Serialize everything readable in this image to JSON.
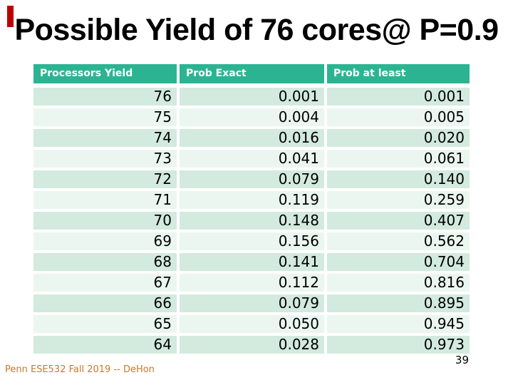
{
  "slide": {
    "title": "Possible Yield of 76 cores@ P=0.9",
    "footer": "Penn ESE532 Fall 2019 -- DeHon",
    "page_number": "39"
  },
  "table": {
    "columns": [
      "Processors Yield",
      "Prob Exact",
      "Prob at least"
    ],
    "rows": [
      [
        "76",
        "0.001",
        "0.001"
      ],
      [
        "75",
        "0.004",
        "0.005"
      ],
      [
        "74",
        "0.016",
        "0.020"
      ],
      [
        "73",
        "0.041",
        "0.061"
      ],
      [
        "72",
        "0.079",
        "0.140"
      ],
      [
        "71",
        "0.119",
        "0.259"
      ],
      [
        "70",
        "0.148",
        "0.407"
      ],
      [
        "69",
        "0.156",
        "0.562"
      ],
      [
        "68",
        "0.141",
        "0.704"
      ],
      [
        "67",
        "0.112",
        "0.816"
      ],
      [
        "66",
        "0.079",
        "0.895"
      ],
      [
        "65",
        "0.050",
        "0.945"
      ],
      [
        "64",
        "0.028",
        "0.973"
      ]
    ]
  },
  "chart_data": {
    "type": "table",
    "title": "Possible Yield of 76 cores@ P=0.9",
    "columns": [
      "Processors Yield",
      "Prob Exact",
      "Prob at least"
    ],
    "processors_yield": [
      76,
      75,
      74,
      73,
      72,
      71,
      70,
      69,
      68,
      67,
      66,
      65,
      64
    ],
    "prob_exact": [
      0.001,
      0.004,
      0.016,
      0.041,
      0.079,
      0.119,
      0.148,
      0.156,
      0.141,
      0.112,
      0.079,
      0.05,
      0.028
    ],
    "prob_at_least": [
      0.001,
      0.005,
      0.02,
      0.061,
      0.14,
      0.259,
      0.407,
      0.562,
      0.704,
      0.816,
      0.895,
      0.945,
      0.973
    ]
  },
  "colors": {
    "header_bg": "#2CB492",
    "row_dark": "#D3EADE",
    "row_light": "#EBF6F1",
    "accent_red": "#C00000",
    "footer_text": "#C8792B"
  }
}
